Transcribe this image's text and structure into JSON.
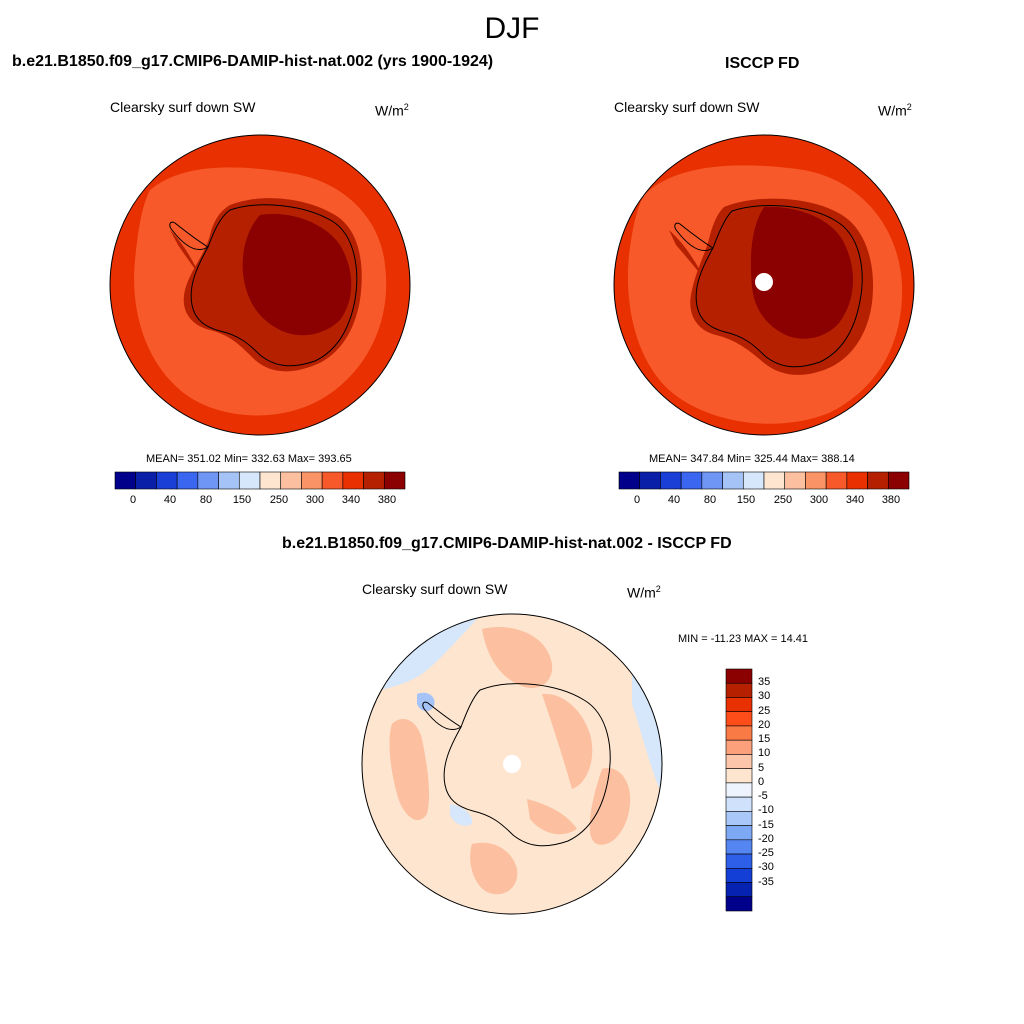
{
  "title": "DJF",
  "panels": {
    "model": {
      "title": "b.e21.B1850.f09_g17.CMIP6-DAMIP-hist-nat.002 (yrs 1900-1924)",
      "variable": "Clearsky surf down SW",
      "units": "W/m",
      "units_sup": "2",
      "stats": "MEAN= 351.02  Min= 332.63  Max= 393.65"
    },
    "obs": {
      "title": "ISCCP FD",
      "variable": "Clearsky surf down SW",
      "units": "W/m",
      "units_sup": "2",
      "stats": "MEAN= 347.84  Min= 325.44  Max= 388.14"
    },
    "diff": {
      "title": "b.e21.B1850.f09_g17.CMIP6-DAMIP-hist-nat.002 - ISCCP FD",
      "variable": "Clearsky surf down SW",
      "units": "W/m",
      "units_sup": "2",
      "stats": "MIN = -11.23 MAX =  14.41"
    }
  },
  "colorbar_main": {
    "colors": [
      "#00008b",
      "#0a1fa8",
      "#1a3fd6",
      "#3a66f0",
      "#6f95f5",
      "#a6c3f8",
      "#d6e6fb",
      "#fde5cf",
      "#fcc0a0",
      "#fa9466",
      "#f7592a",
      "#e83000",
      "#b52100",
      "#8b0000"
    ],
    "tick_labels": [
      "0",
      "40",
      "80",
      "150",
      "250",
      "300",
      "340",
      "380"
    ]
  },
  "colorbar_diff": {
    "colors": [
      "#8b0000",
      "#b52100",
      "#e83000",
      "#ff4d1a",
      "#fa7a45",
      "#fca07c",
      "#fdc6aa",
      "#fde5cf",
      "#eef4fd",
      "#cfe1fb",
      "#a9c7f8",
      "#7da8f4",
      "#5485f0",
      "#2e5fe8",
      "#143fd6",
      "#0522b0",
      "#00008b"
    ],
    "labels": [
      "35",
      "30",
      "25",
      "20",
      "15",
      "10",
      "5",
      "0",
      "-5",
      "-10",
      "-15",
      "-20",
      "-25",
      "-30",
      "-35"
    ]
  },
  "map_colors": {
    "main_outer": "#e83000",
    "main_mid": "#f7592a",
    "main_land": "#b52100",
    "main_plateau": "#8b0000",
    "diff_base": "#fde5cf",
    "diff_warm": "#fcc0a0",
    "diff_cool": "#d6e6fb",
    "diff_cooler": "#a6c3f8"
  }
}
